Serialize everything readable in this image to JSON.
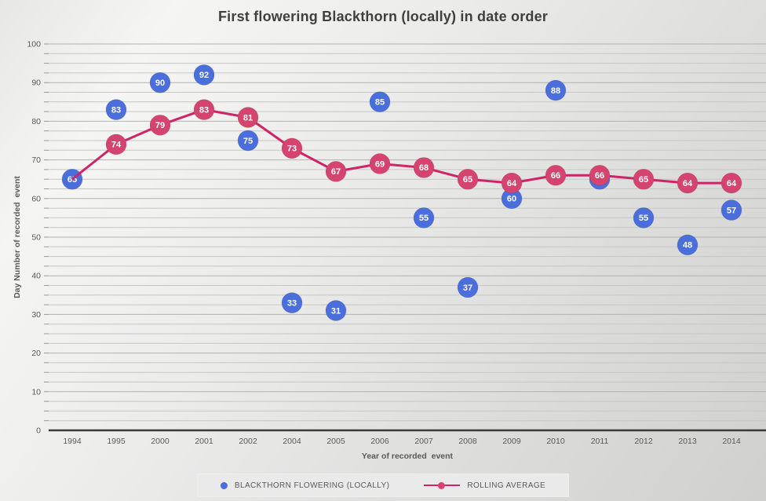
{
  "title": "First flowering Blackthorn (locally) in date order",
  "axes": {
    "x_label": "Year of recorded  event",
    "y_label": "Day Number of recorded  event",
    "y_ticks": [
      0,
      10,
      20,
      30,
      40,
      50,
      60,
      70,
      80,
      90,
      100
    ],
    "y_minor_step": 2.5
  },
  "legend": {
    "items": [
      "BLACKTHORN FLOWERING (LOCALLY)",
      "ROLLING AVERAGE"
    ]
  },
  "colors": {
    "blue_marker": "#4a6edb",
    "pink_marker": "#d5436f",
    "pink_line": "#cf2468",
    "tick_text": "#595959",
    "title_text": "#3f3f3f",
    "gridline_minor": "#c6c6c6",
    "gridline_major": "#b2b2b2",
    "axis_line": "#3b3b3b",
    "marker_label_text": "#ffffff",
    "legend_bg": "#eaeaea"
  },
  "chart_data": {
    "type": "scatter",
    "title": "First flowering Blackthorn (locally) in date order",
    "xlabel": "Year of recorded  event",
    "ylabel": "Day Number of recorded  event",
    "ylim": [
      0,
      100
    ],
    "y_major_step": 10,
    "y_minor_step": 2.5,
    "grid": "horizontal-minor",
    "legend_position": "bottom",
    "data_labels": "inside-markers",
    "categories": [
      "1994",
      "1995",
      "2000",
      "2001",
      "2002",
      "2004",
      "2005",
      "2006",
      "2007",
      "2008",
      "2009",
      "2010",
      "2011",
      "2012",
      "2013",
      "2014"
    ],
    "series": [
      {
        "name": "BLACKTHORN FLOWERING (LOCALLY)",
        "type": "scatter",
        "color": "#4a6edb",
        "values": [
          65,
          83,
          90,
          92,
          75,
          33,
          31,
          85,
          55,
          37,
          60,
          88,
          65,
          55,
          48,
          57
        ]
      },
      {
        "name": "ROLLING AVERAGE",
        "type": "line",
        "color": "#d5436f",
        "line_color": "#cf2468",
        "first_marker_hidden": true,
        "values": [
          65,
          74,
          79,
          83,
          81,
          73,
          67,
          69,
          68,
          65,
          64,
          66,
          66,
          65,
          64,
          64
        ]
      }
    ]
  }
}
